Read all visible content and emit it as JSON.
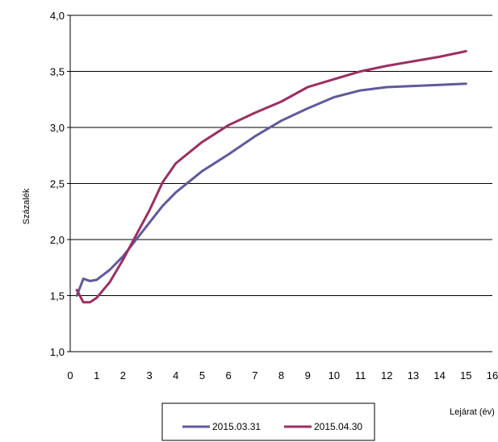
{
  "chart_data": {
    "type": "line",
    "title": "",
    "xlabel": "Lejárat (év)",
    "ylabel": "Százalék",
    "xlim": [
      0,
      16
    ],
    "ylim": [
      1.0,
      4.0
    ],
    "x_ticks": [
      0,
      1,
      2,
      3,
      4,
      5,
      6,
      7,
      8,
      9,
      10,
      11,
      12,
      13,
      14,
      15,
      16
    ],
    "y_ticks": [
      "1,0",
      "1,5",
      "2,0",
      "2,5",
      "3,0",
      "3,5",
      "4,0"
    ],
    "y_tick_values": [
      1.0,
      1.5,
      2.0,
      2.5,
      3.0,
      3.5,
      4.0
    ],
    "grid": "horizontal",
    "legend_position": "bottom",
    "series": [
      {
        "name": "2015.03.31",
        "color": "#5f5a9c",
        "points": [
          [
            0.25,
            1.5
          ],
          [
            0.5,
            1.65
          ],
          [
            0.75,
            1.63
          ],
          [
            1.0,
            1.64
          ],
          [
            1.5,
            1.73
          ],
          [
            2.0,
            1.85
          ],
          [
            2.5,
            2.0
          ],
          [
            3.0,
            2.15
          ],
          [
            3.5,
            2.3
          ],
          [
            4.0,
            2.42
          ],
          [
            5.0,
            2.61
          ],
          [
            6.0,
            2.76
          ],
          [
            7.0,
            2.92
          ],
          [
            8.0,
            3.06
          ],
          [
            9.0,
            3.17
          ],
          [
            10.0,
            3.27
          ],
          [
            11.0,
            3.33
          ],
          [
            12.0,
            3.36
          ],
          [
            13.0,
            3.37
          ],
          [
            14.0,
            3.38
          ],
          [
            15.0,
            3.39
          ]
        ]
      },
      {
        "name": "2015.04.30",
        "color": "#9b2f61",
        "points": [
          [
            0.25,
            1.55
          ],
          [
            0.5,
            1.44
          ],
          [
            0.75,
            1.44
          ],
          [
            1.0,
            1.48
          ],
          [
            1.5,
            1.62
          ],
          [
            2.0,
            1.82
          ],
          [
            2.5,
            2.04
          ],
          [
            3.0,
            2.26
          ],
          [
            3.5,
            2.51
          ],
          [
            4.0,
            2.68
          ],
          [
            5.0,
            2.87
          ],
          [
            6.0,
            3.02
          ],
          [
            7.0,
            3.13
          ],
          [
            8.0,
            3.23
          ],
          [
            9.0,
            3.36
          ],
          [
            10.0,
            3.43
          ],
          [
            11.0,
            3.5
          ],
          [
            12.0,
            3.55
          ],
          [
            13.0,
            3.59
          ],
          [
            14.0,
            3.63
          ],
          [
            15.0,
            3.68
          ]
        ]
      }
    ]
  }
}
